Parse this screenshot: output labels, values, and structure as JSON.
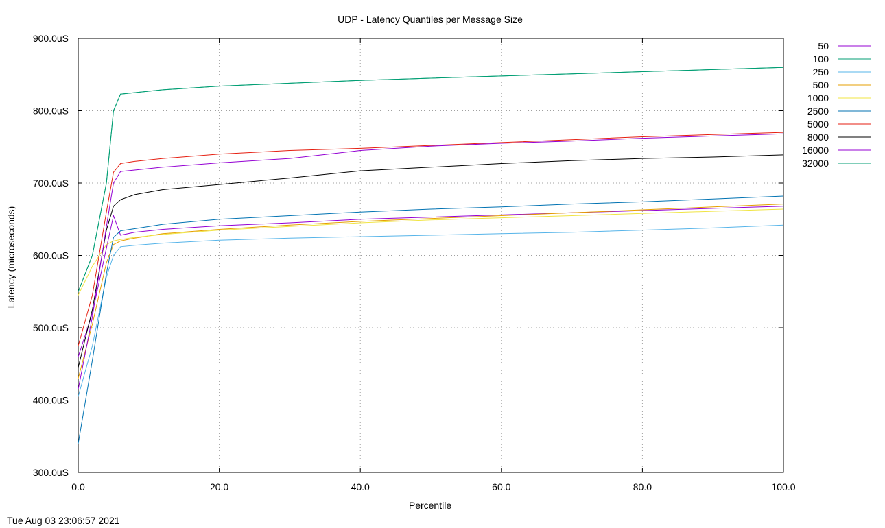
{
  "footer": {
    "timestamp": "Tue Aug 03 23:06:57 2021"
  },
  "chart_data": {
    "type": "line",
    "title": "UDP - Latency Quantiles per Message Size",
    "xlabel": "Percentile",
    "ylabel": "Latency (microseconds)",
    "xlim": [
      0,
      100
    ],
    "ylim": [
      300,
      900
    ],
    "x_ticks": [
      0,
      20,
      40,
      60,
      80,
      100
    ],
    "x_tick_labels": [
      "0.0",
      "20.0",
      "40.0",
      "60.0",
      "80.0",
      "100.0"
    ],
    "y_ticks": [
      300,
      400,
      500,
      600,
      700,
      800,
      900
    ],
    "y_tick_labels": [
      "300.0uS",
      "400.0uS",
      "500.0uS",
      "600.0uS",
      "700.0uS",
      "800.0uS",
      "900.0uS"
    ],
    "grid": true,
    "legend_position": "right",
    "x": [
      0,
      2,
      4,
      5,
      6,
      8,
      12,
      20,
      30,
      40,
      50,
      60,
      70,
      80,
      90,
      100
    ],
    "series": [
      {
        "name": "50",
        "color": "#9400d3",
        "values": [
          460,
          520,
          610,
          655,
          628,
          632,
          636,
          641,
          645,
          650,
          653,
          656,
          659,
          662,
          665,
          668
        ]
      },
      {
        "name": "100",
        "color": "#009e73",
        "values": [
          550,
          600,
          700,
          800,
          823,
          825,
          829,
          834,
          838,
          842,
          845,
          848,
          851,
          854,
          857,
          860
        ]
      },
      {
        "name": "250",
        "color": "#56b4e9",
        "values": [
          405,
          475,
          570,
          600,
          612,
          614,
          617,
          621,
          624,
          626,
          628,
          630,
          632,
          635,
          638,
          642
        ]
      },
      {
        "name": "500",
        "color": "#e69f00",
        "values": [
          430,
          505,
          590,
          615,
          620,
          624,
          630,
          636,
          642,
          647,
          651,
          655,
          659,
          663,
          667,
          671
        ]
      },
      {
        "name": "1000",
        "color": "#f0e442",
        "values": [
          545,
          585,
          615,
          620,
          622,
          625,
          629,
          635,
          640,
          645,
          649,
          652,
          655,
          658,
          661,
          664
        ]
      },
      {
        "name": "2500",
        "color": "#0072b2",
        "values": [
          340,
          455,
          575,
          625,
          634,
          637,
          643,
          650,
          655,
          660,
          664,
          667,
          671,
          674,
          678,
          682
        ]
      },
      {
        "name": "5000",
        "color": "#e51e10",
        "values": [
          475,
          545,
          660,
          715,
          727,
          730,
          734,
          740,
          745,
          748,
          752,
          756,
          760,
          764,
          767,
          770
        ]
      },
      {
        "name": "8000",
        "color": "#000000",
        "values": [
          445,
          525,
          635,
          668,
          677,
          684,
          691,
          698,
          707,
          717,
          722,
          727,
          731,
          734,
          736,
          739
        ]
      },
      {
        "name": "16000",
        "color": "#9400d3",
        "values": [
          415,
          515,
          640,
          700,
          716,
          718,
          722,
          728,
          734,
          745,
          751,
          755,
          758,
          762,
          765,
          768
        ]
      },
      {
        "name": "32000",
        "color": "#009e73",
        "values": [
          550,
          600,
          700,
          800,
          823,
          825,
          829,
          834,
          838,
          842,
          845,
          848,
          851,
          854,
          857,
          860
        ]
      }
    ]
  }
}
